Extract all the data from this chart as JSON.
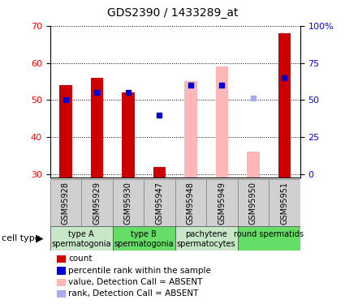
{
  "title": "GDS2390 / 1433289_at",
  "samples": [
    "GSM95928",
    "GSM95929",
    "GSM95930",
    "GSM95947",
    "GSM95948",
    "GSM95949",
    "GSM95950",
    "GSM95951"
  ],
  "bar_values": [
    54,
    56,
    52,
    32,
    null,
    null,
    null,
    68
  ],
  "pink_bar_values": [
    null,
    null,
    null,
    null,
    55,
    59,
    36,
    null
  ],
  "blue_dot_values": [
    50,
    52,
    52,
    46,
    54,
    54,
    50.5,
    56
  ],
  "blue_dot_absent": [
    false,
    false,
    false,
    false,
    false,
    false,
    true,
    false
  ],
  "ylim": [
    29,
    70
  ],
  "yticks_left": [
    30,
    40,
    50,
    60,
    70
  ],
  "yticks_right_labels": [
    "0",
    "25",
    "50",
    "75",
    "100%"
  ],
  "yticks_right_vals": [
    30,
    40,
    50,
    60,
    70
  ],
  "group_colors": [
    "#c8e6c8",
    "#66dd66",
    "#c8e6c8",
    "#66dd66"
  ],
  "group_labels_line1": [
    "type A",
    "type B",
    "pachytene",
    "round spermatids"
  ],
  "group_labels_line2": [
    "spermatogonia",
    "spermatogonia",
    "spermatocytes",
    ""
  ],
  "legend_items": [
    {
      "label": "count",
      "color": "#cc0000"
    },
    {
      "label": "percentile rank within the sample",
      "color": "#0000cc"
    },
    {
      "label": "value, Detection Call = ABSENT",
      "color": "#ffb6b6"
    },
    {
      "label": "rank, Detection Call = ABSENT",
      "color": "#aaaaee"
    }
  ],
  "bar_color_red": "#cc0000",
  "pink_color": "#ffb6c8",
  "bar_width": 0.4
}
